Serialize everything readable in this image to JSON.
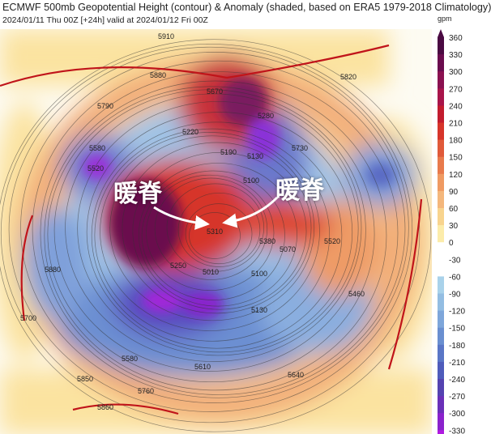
{
  "header": {
    "title": "ECMWF 500mb Geopotential Height (contour) & Anomaly (shaded, based on ERA5 1979-2018 Climatology)",
    "subtitle": "2024/01/11 Thu 00Z [+24h] valid at 2024/01/12 Fri 00Z"
  },
  "colorbar": {
    "unit": "gpm",
    "ticks": [
      "360",
      "330",
      "300",
      "270",
      "240",
      "210",
      "180",
      "150",
      "120",
      "90",
      "60",
      "30",
      "0",
      "-30",
      "-60",
      "-90",
      "-120",
      "-150",
      "-180",
      "-210",
      "-240",
      "-270",
      "-300",
      "-330"
    ],
    "colors": [
      "#4a0a42",
      "#6a0c4e",
      "#8a1150",
      "#a8154a",
      "#c21c2e",
      "#d6352a",
      "#e05a3a",
      "#e87a4c",
      "#ef9a62",
      "#f4b77c",
      "#f8d48e",
      "#fcecaa",
      "#ffffff",
      "#ffffff",
      "#a9d2ea",
      "#93bde2",
      "#7ea6da",
      "#6a8fd0",
      "#5a76c6",
      "#4f5cbb",
      "#5443b0",
      "#6a30b8",
      "#8a22cc",
      "#b01ae0"
    ]
  },
  "contour_labels": [
    "5910",
    "5880",
    "5820",
    "5790",
    "5670",
    "5580",
    "5520",
    "5280",
    "5220",
    "5190",
    "5130",
    "5100",
    "5730",
    "5310",
    "5250",
    "5010",
    "5100",
    "5070",
    "5520",
    "5460",
    "5380",
    "5130",
    "5580",
    "5610",
    "5640",
    "5760",
    "5850",
    "5860",
    "5880",
    "5700"
  ],
  "annotations": {
    "left_label": "暖脊",
    "right_label": "暖脊"
  }
}
